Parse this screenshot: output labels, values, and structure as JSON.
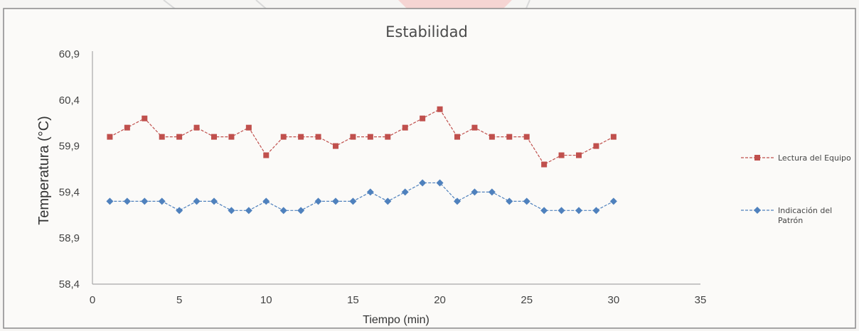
{
  "chart_data": {
    "type": "line",
    "title": "Estabilidad",
    "xlabel": "Tiempo (min)",
    "ylabel": "Temperatura  (°C)",
    "xlim": [
      0,
      35
    ],
    "ylim": [
      58.4,
      60.9
    ],
    "xticks": [
      0,
      5,
      10,
      15,
      20,
      25,
      30,
      35
    ],
    "xtick_labels": [
      "0",
      "5",
      "10",
      "15",
      "20",
      "25",
      "30",
      "35"
    ],
    "yticks": [
      58.4,
      58.9,
      59.4,
      59.9,
      60.4,
      60.9
    ],
    "ytick_labels": [
      "58,4",
      "58,9",
      "59,4",
      "59,9",
      "60,4",
      "60,9"
    ],
    "grid": false,
    "legend_position": "right",
    "x": [
      1,
      2,
      3,
      4,
      5,
      6,
      7,
      8,
      9,
      10,
      11,
      12,
      13,
      14,
      15,
      16,
      17,
      18,
      19,
      20,
      21,
      22,
      23,
      24,
      25,
      26,
      27,
      28,
      29,
      30
    ],
    "series": [
      {
        "name": "Lectura del Equipo",
        "color": "#c0504d",
        "marker": "square",
        "values": [
          60.0,
          60.1,
          60.2,
          60.0,
          60.0,
          60.1,
          60.0,
          60.0,
          60.1,
          59.8,
          60.0,
          60.0,
          60.0,
          59.9,
          60.0,
          60.0,
          60.0,
          60.1,
          60.2,
          60.3,
          60.0,
          60.1,
          60.0,
          60.0,
          60.0,
          59.7,
          59.8,
          59.8,
          59.9,
          60.0
        ]
      },
      {
        "name": "Indicación del Patrón",
        "legend_lines": [
          "Indicación del",
          "Patrón"
        ],
        "color": "#4f81bd",
        "marker": "diamond",
        "values": [
          59.3,
          59.3,
          59.3,
          59.3,
          59.2,
          59.3,
          59.3,
          59.2,
          59.2,
          59.3,
          59.2,
          59.2,
          59.3,
          59.3,
          59.3,
          59.4,
          59.3,
          59.4,
          59.5,
          59.5,
          59.3,
          59.4,
          59.4,
          59.3,
          59.3,
          59.2,
          59.2,
          59.2,
          59.2,
          59.3
        ]
      }
    ]
  }
}
